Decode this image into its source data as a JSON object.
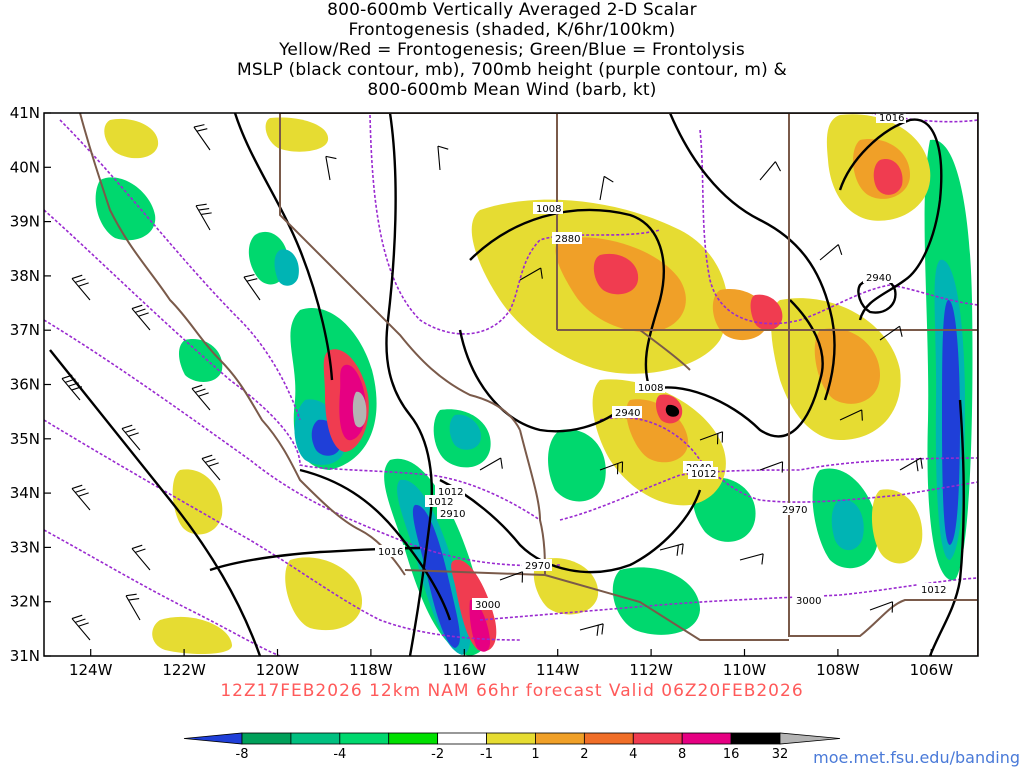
{
  "title": {
    "line1": "800-600mb Vertically Averaged 2-D Scalar",
    "line2": "Frontogenesis (shaded, K/6hr/100km)",
    "line3": "Yellow/Red = Frontogenesis;  Green/Blue = Frontolysis",
    "line4": "MSLP (black contour, mb), 700mb height (purple contour, m) &",
    "line5": "800-600mb Mean Wind (barb, kt)"
  },
  "subtitle": "12Z17FEB2026 12km NAM 66hr forecast Valid 06Z20FEB2026",
  "url": "moe.met.fsu.edu/banding",
  "map": {
    "lon_range": [
      -125,
      -105
    ],
    "lat_range": [
      31,
      41
    ],
    "lon_ticks": [
      "124W",
      "122W",
      "120W",
      "118W",
      "116W",
      "114W",
      "112W",
      "110W",
      "108W",
      "106W"
    ],
    "lat_ticks": [
      "41N",
      "40N",
      "39N",
      "38N",
      "37N",
      "36N",
      "35N",
      "34N",
      "33N",
      "32N",
      "31N"
    ]
  },
  "colorbar": {
    "labels": [
      "-8",
      "-4",
      "-2",
      "-1",
      "1",
      "2",
      "4",
      "8",
      "16",
      "32"
    ],
    "colors": [
      "#1f3fd8",
      "#00a05a",
      "#00c080",
      "#00d86e",
      "#00e000",
      "#ffffff",
      "#e6dc32",
      "#f0a028",
      "#f06e28",
      "#f03c50",
      "#e60082",
      "#000000",
      "#b4b4b4"
    ]
  },
  "contour_labels": {
    "mslp": [
      "1016",
      "1008",
      "1008",
      "1012",
      "1012",
      "1012",
      "1016",
      "1012"
    ],
    "height": [
      "2880",
      "2940",
      "2970",
      "2910",
      "2970",
      "3000",
      "3000",
      "2940",
      "2940"
    ]
  },
  "colors": {
    "mslp": "#000000",
    "height": "#9a2ad0",
    "borders": "#7a5a4a",
    "subtitle": "#ff5a5a",
    "url": "#4a7ad8"
  }
}
